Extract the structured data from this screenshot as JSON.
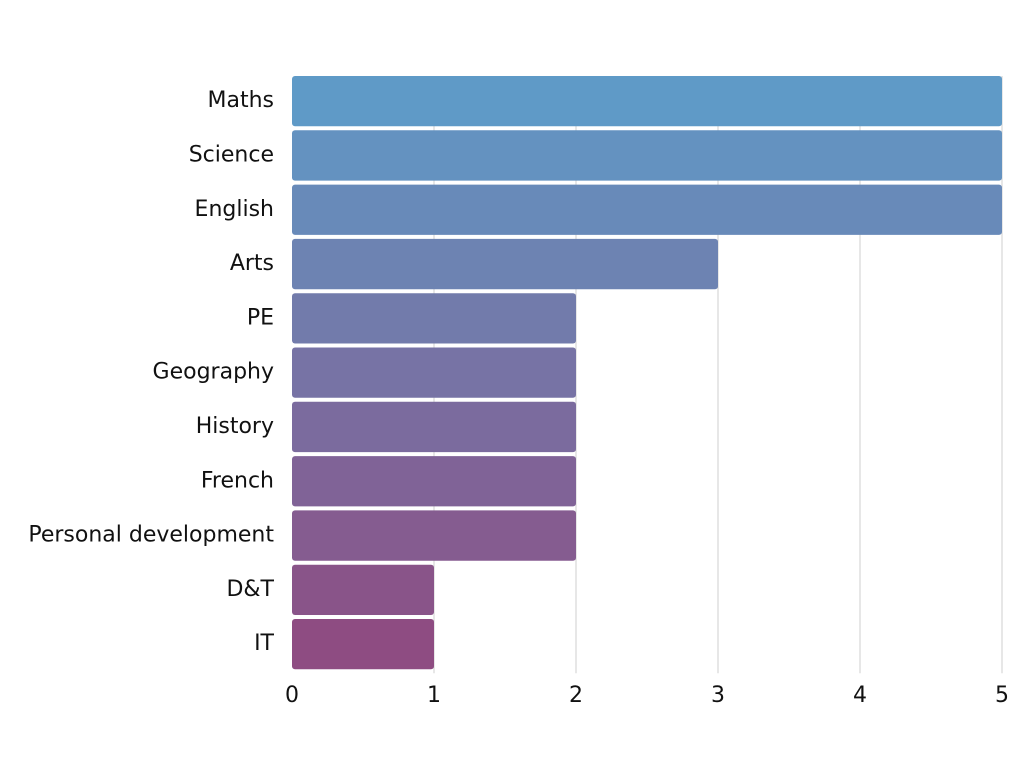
{
  "chart_data": {
    "type": "bar",
    "orientation": "horizontal",
    "title": "",
    "xlabel": "",
    "ylabel": "",
    "categories": [
      "Maths",
      "Science",
      "English",
      "Arts",
      "PE",
      "Geography",
      "History",
      "French",
      "Personal development",
      "D&T",
      "IT"
    ],
    "values": [
      5,
      5,
      5,
      3,
      2,
      2,
      2,
      2,
      2,
      1,
      1
    ],
    "xlim": [
      0,
      5
    ],
    "x_ticks": [
      "0",
      "1",
      "2",
      "3",
      "4",
      "5"
    ],
    "grid": "vertical",
    "colors": {
      "bar_start": "#5f9ac7",
      "bar_end": "#8e4c82",
      "grid": "#cfcfcf"
    }
  }
}
